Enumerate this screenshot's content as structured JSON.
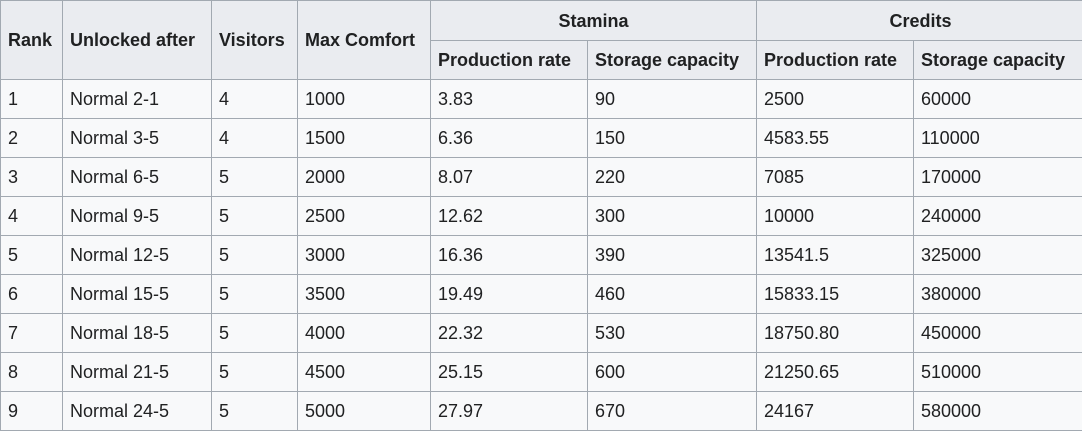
{
  "table": {
    "headers": {
      "rank": "Rank",
      "unlocked_after": "Unlocked after",
      "visitors": "Visitors",
      "max_comfort": "Max Comfort",
      "stamina": "Stamina",
      "credits": "Credits",
      "stamina_production_rate": "Production rate",
      "stamina_storage_capacity": "Storage capacity",
      "credits_production_rate": "Production rate",
      "credits_storage_capacity": "Storage capacity"
    },
    "rows": [
      [
        "1",
        "Normal 2-1",
        "4",
        "1000",
        "3.83",
        "90",
        "2500",
        "60000"
      ],
      [
        "2",
        "Normal 3-5",
        "4",
        "1500",
        "6.36",
        "150",
        "4583.55",
        "110000"
      ],
      [
        "3",
        "Normal 6-5",
        "5",
        "2000",
        "8.07",
        "220",
        "7085",
        "170000"
      ],
      [
        "4",
        "Normal 9-5",
        "5",
        "2500",
        "12.62",
        "300",
        "10000",
        "240000"
      ],
      [
        "5",
        "Normal 12-5",
        "5",
        "3000",
        "16.36",
        "390",
        "13541.5",
        "325000"
      ],
      [
        "6",
        "Normal 15-5",
        "5",
        "3500",
        "19.49",
        "460",
        "15833.15",
        "380000"
      ],
      [
        "7",
        "Normal 18-5",
        "5",
        "4000",
        "22.32",
        "530",
        "18750.80",
        "450000"
      ],
      [
        "8",
        "Normal 21-5",
        "5",
        "4500",
        "25.15",
        "600",
        "21250.65",
        "510000"
      ],
      [
        "9",
        "Normal 24-5",
        "5",
        "5000",
        "27.97",
        "670",
        "24167",
        "580000"
      ]
    ]
  }
}
